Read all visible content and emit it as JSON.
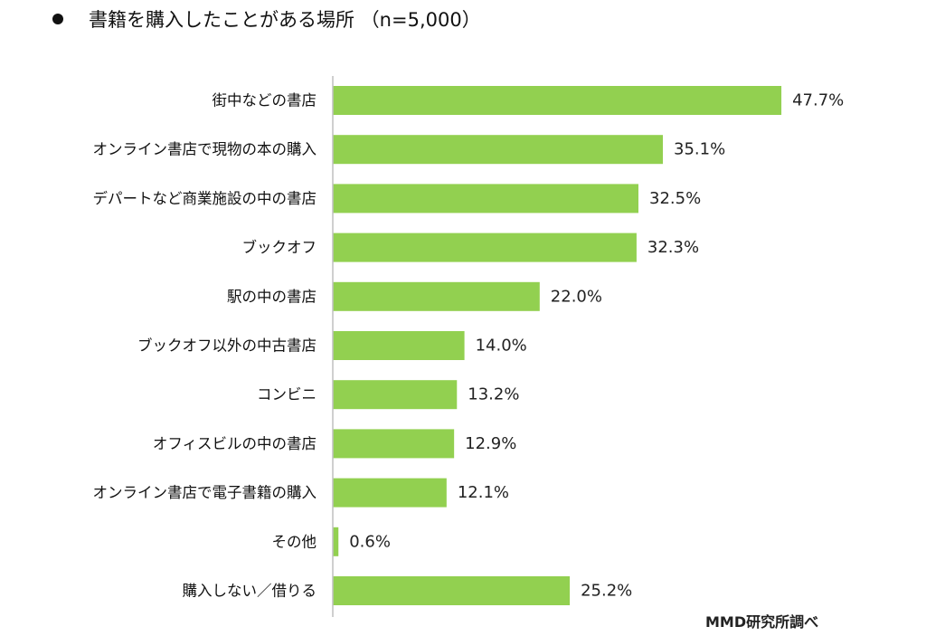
{
  "chart_data": {
    "type": "bar",
    "orientation": "horizontal",
    "title": "書籍を購入したことがある場所 （n=5,000）",
    "categories": [
      "街中などの書店",
      "オンライン書店で現物の本の購入",
      "デパートなど商業施設の中の書店",
      "ブックオフ",
      "駅の中の書店",
      "ブックオフ以外の中古書店",
      "コンビニ",
      "オフィスビルの中の書店",
      "オンライン書店で電子書籍の購入",
      "その他",
      "購入しない／借りる"
    ],
    "values": [
      47.7,
      35.1,
      32.5,
      32.3,
      22.0,
      14.0,
      13.2,
      12.9,
      12.1,
      0.6,
      25.2
    ],
    "value_labels": [
      "47.7%",
      "35.1%",
      "32.5%",
      "32.3%",
      "22.0%",
      "14.0%",
      "13.2%",
      "12.9%",
      "12.1%",
      "0.6%",
      "25.2%"
    ],
    "unit": "%",
    "xlim": [
      0,
      50
    ],
    "grid": false,
    "legend": "none",
    "bar_color": "#92d050",
    "axis_color": "#bfbfbf",
    "source": "MMD研究所調べ"
  }
}
